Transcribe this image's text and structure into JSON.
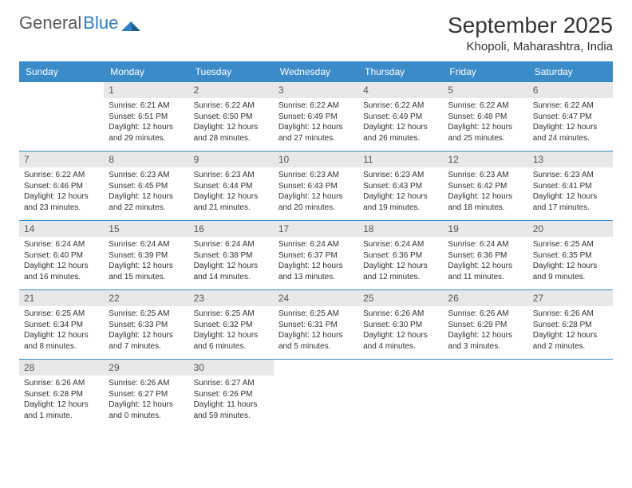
{
  "logo": {
    "text1": "General",
    "text2": "Blue"
  },
  "title": "September 2025",
  "location": "Khopoli, Maharashtra, India",
  "colors": {
    "header_bg": "#3b8bc9",
    "header_text": "#ffffff",
    "daynum_bg": "#e8e8e8",
    "daynum_text": "#555555",
    "body_text": "#333333",
    "logo_gray": "#5a5a5a",
    "logo_blue": "#2f7fc1",
    "border": "#3b8bc9"
  },
  "day_labels": [
    "Sunday",
    "Monday",
    "Tuesday",
    "Wednesday",
    "Thursday",
    "Friday",
    "Saturday"
  ],
  "weeks": [
    [
      null,
      {
        "n": "1",
        "sr": "Sunrise: 6:21 AM",
        "ss": "Sunset: 6:51 PM",
        "d1": "Daylight: 12 hours",
        "d2": "and 29 minutes."
      },
      {
        "n": "2",
        "sr": "Sunrise: 6:22 AM",
        "ss": "Sunset: 6:50 PM",
        "d1": "Daylight: 12 hours",
        "d2": "and 28 minutes."
      },
      {
        "n": "3",
        "sr": "Sunrise: 6:22 AM",
        "ss": "Sunset: 6:49 PM",
        "d1": "Daylight: 12 hours",
        "d2": "and 27 minutes."
      },
      {
        "n": "4",
        "sr": "Sunrise: 6:22 AM",
        "ss": "Sunset: 6:49 PM",
        "d1": "Daylight: 12 hours",
        "d2": "and 26 minutes."
      },
      {
        "n": "5",
        "sr": "Sunrise: 6:22 AM",
        "ss": "Sunset: 6:48 PM",
        "d1": "Daylight: 12 hours",
        "d2": "and 25 minutes."
      },
      {
        "n": "6",
        "sr": "Sunrise: 6:22 AM",
        "ss": "Sunset: 6:47 PM",
        "d1": "Daylight: 12 hours",
        "d2": "and 24 minutes."
      }
    ],
    [
      {
        "n": "7",
        "sr": "Sunrise: 6:22 AM",
        "ss": "Sunset: 6:46 PM",
        "d1": "Daylight: 12 hours",
        "d2": "and 23 minutes."
      },
      {
        "n": "8",
        "sr": "Sunrise: 6:23 AM",
        "ss": "Sunset: 6:45 PM",
        "d1": "Daylight: 12 hours",
        "d2": "and 22 minutes."
      },
      {
        "n": "9",
        "sr": "Sunrise: 6:23 AM",
        "ss": "Sunset: 6:44 PM",
        "d1": "Daylight: 12 hours",
        "d2": "and 21 minutes."
      },
      {
        "n": "10",
        "sr": "Sunrise: 6:23 AM",
        "ss": "Sunset: 6:43 PM",
        "d1": "Daylight: 12 hours",
        "d2": "and 20 minutes."
      },
      {
        "n": "11",
        "sr": "Sunrise: 6:23 AM",
        "ss": "Sunset: 6:43 PM",
        "d1": "Daylight: 12 hours",
        "d2": "and 19 minutes."
      },
      {
        "n": "12",
        "sr": "Sunrise: 6:23 AM",
        "ss": "Sunset: 6:42 PM",
        "d1": "Daylight: 12 hours",
        "d2": "and 18 minutes."
      },
      {
        "n": "13",
        "sr": "Sunrise: 6:23 AM",
        "ss": "Sunset: 6:41 PM",
        "d1": "Daylight: 12 hours",
        "d2": "and 17 minutes."
      }
    ],
    [
      {
        "n": "14",
        "sr": "Sunrise: 6:24 AM",
        "ss": "Sunset: 6:40 PM",
        "d1": "Daylight: 12 hours",
        "d2": "and 16 minutes."
      },
      {
        "n": "15",
        "sr": "Sunrise: 6:24 AM",
        "ss": "Sunset: 6:39 PM",
        "d1": "Daylight: 12 hours",
        "d2": "and 15 minutes."
      },
      {
        "n": "16",
        "sr": "Sunrise: 6:24 AM",
        "ss": "Sunset: 6:38 PM",
        "d1": "Daylight: 12 hours",
        "d2": "and 14 minutes."
      },
      {
        "n": "17",
        "sr": "Sunrise: 6:24 AM",
        "ss": "Sunset: 6:37 PM",
        "d1": "Daylight: 12 hours",
        "d2": "and 13 minutes."
      },
      {
        "n": "18",
        "sr": "Sunrise: 6:24 AM",
        "ss": "Sunset: 6:36 PM",
        "d1": "Daylight: 12 hours",
        "d2": "and 12 minutes."
      },
      {
        "n": "19",
        "sr": "Sunrise: 6:24 AM",
        "ss": "Sunset: 6:36 PM",
        "d1": "Daylight: 12 hours",
        "d2": "and 11 minutes."
      },
      {
        "n": "20",
        "sr": "Sunrise: 6:25 AM",
        "ss": "Sunset: 6:35 PM",
        "d1": "Daylight: 12 hours",
        "d2": "and 9 minutes."
      }
    ],
    [
      {
        "n": "21",
        "sr": "Sunrise: 6:25 AM",
        "ss": "Sunset: 6:34 PM",
        "d1": "Daylight: 12 hours",
        "d2": "and 8 minutes."
      },
      {
        "n": "22",
        "sr": "Sunrise: 6:25 AM",
        "ss": "Sunset: 6:33 PM",
        "d1": "Daylight: 12 hours",
        "d2": "and 7 minutes."
      },
      {
        "n": "23",
        "sr": "Sunrise: 6:25 AM",
        "ss": "Sunset: 6:32 PM",
        "d1": "Daylight: 12 hours",
        "d2": "and 6 minutes."
      },
      {
        "n": "24",
        "sr": "Sunrise: 6:25 AM",
        "ss": "Sunset: 6:31 PM",
        "d1": "Daylight: 12 hours",
        "d2": "and 5 minutes."
      },
      {
        "n": "25",
        "sr": "Sunrise: 6:26 AM",
        "ss": "Sunset: 6:30 PM",
        "d1": "Daylight: 12 hours",
        "d2": "and 4 minutes."
      },
      {
        "n": "26",
        "sr": "Sunrise: 6:26 AM",
        "ss": "Sunset: 6:29 PM",
        "d1": "Daylight: 12 hours",
        "d2": "and 3 minutes."
      },
      {
        "n": "27",
        "sr": "Sunrise: 6:26 AM",
        "ss": "Sunset: 6:28 PM",
        "d1": "Daylight: 12 hours",
        "d2": "and 2 minutes."
      }
    ],
    [
      {
        "n": "28",
        "sr": "Sunrise: 6:26 AM",
        "ss": "Sunset: 6:28 PM",
        "d1": "Daylight: 12 hours",
        "d2": "and 1 minute."
      },
      {
        "n": "29",
        "sr": "Sunrise: 6:26 AM",
        "ss": "Sunset: 6:27 PM",
        "d1": "Daylight: 12 hours",
        "d2": "and 0 minutes."
      },
      {
        "n": "30",
        "sr": "Sunrise: 6:27 AM",
        "ss": "Sunset: 6:26 PM",
        "d1": "Daylight: 11 hours",
        "d2": "and 59 minutes."
      },
      null,
      null,
      null,
      null
    ]
  ]
}
